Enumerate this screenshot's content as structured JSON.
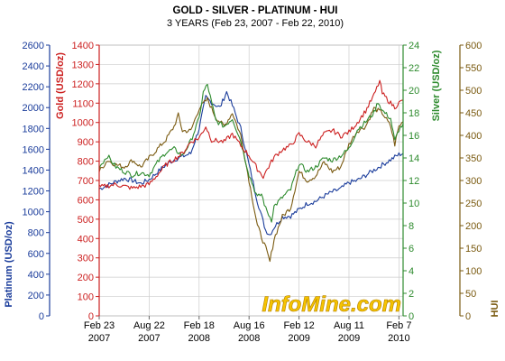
{
  "chart_data": {
    "type": "line",
    "title": "GOLD - SILVER - PLATINUM - HUI",
    "subtitle": "3 YEARS (Feb 23, 2007 - Feb 22, 2010)",
    "watermark": "InfoMine.com",
    "grid": true,
    "x_ticks": [
      {
        "month": "Feb 23",
        "year": "2007",
        "t": 0
      },
      {
        "month": "Aug 22",
        "year": "2007",
        "t": 6
      },
      {
        "month": "Feb 18",
        "year": "2008",
        "t": 12
      },
      {
        "month": "Aug 16",
        "year": "2008",
        "t": 18
      },
      {
        "month": "Feb 12",
        "year": "2009",
        "t": 24
      },
      {
        "month": "Aug 11",
        "year": "2009",
        "t": 30
      },
      {
        "month": "Feb 7",
        "year": "2010",
        "t": 36
      }
    ],
    "x_range_months": [
      0,
      36.5
    ],
    "axes": {
      "platinum": {
        "label": "Platinum (USD/oz)",
        "color": "#1a3c9b",
        "min": 0,
        "max": 2600,
        "ticks": [
          "0",
          "200",
          "400",
          "600",
          "800",
          "1000",
          "1200",
          "1400",
          "1600",
          "1800",
          "2000",
          "2200",
          "2400",
          "2600"
        ]
      },
      "gold": {
        "label": "Gold (USD/oz)",
        "color": "#cc2020",
        "min": 0,
        "max": 1400,
        "ticks": [
          "0",
          "100",
          "200",
          "300",
          "400",
          "500",
          "600",
          "700",
          "800",
          "900",
          "1000",
          "1100",
          "1200",
          "1300",
          "1400"
        ]
      },
      "silver": {
        "label": "Silver (USD/oz)",
        "color": "#2e8b2e",
        "min": 0,
        "max": 24,
        "ticks": [
          "0",
          "2",
          "4",
          "6",
          "8",
          "10",
          "12",
          "14",
          "16",
          "18",
          "20",
          "22",
          "24"
        ]
      },
      "hui": {
        "label": "HUI",
        "color": "#7a5a10",
        "min": 0,
        "max": 600,
        "ticks": [
          "0",
          "50",
          "100",
          "150",
          "200",
          "250",
          "300",
          "350",
          "400",
          "450",
          "500",
          "550",
          "600"
        ]
      }
    },
    "series": [
      {
        "name": "Gold",
        "axis": "gold",
        "color": "#cc2020",
        "points": [
          [
            0,
            665
          ],
          [
            2,
            680
          ],
          [
            4,
            660
          ],
          [
            6,
            680
          ],
          [
            7,
            730
          ],
          [
            8,
            780
          ],
          [
            9,
            810
          ],
          [
            10,
            840
          ],
          [
            11,
            900
          ],
          [
            12,
            920
          ],
          [
            12.8,
            980
          ],
          [
            13.5,
            910
          ],
          [
            15,
            900
          ],
          [
            16,
            940
          ],
          [
            17,
            880
          ],
          [
            18,
            830
          ],
          [
            19,
            760
          ],
          [
            19.7,
            720
          ],
          [
            20.2,
            760
          ],
          [
            21,
            820
          ],
          [
            22,
            860
          ],
          [
            23,
            880
          ],
          [
            24,
            940
          ],
          [
            25,
            900
          ],
          [
            26,
            880
          ],
          [
            27,
            940
          ],
          [
            28,
            960
          ],
          [
            29,
            930
          ],
          [
            30,
            950
          ],
          [
            31,
            1000
          ],
          [
            32,
            1060
          ],
          [
            33,
            1140
          ],
          [
            33.7,
            1215
          ],
          [
            34,
            1150
          ],
          [
            35,
            1100
          ],
          [
            35.5,
            1080
          ],
          [
            36,
            1100
          ],
          [
            36.5,
            1115
          ]
        ]
      },
      {
        "name": "Silver",
        "axis": "silver",
        "color": "#2e8b2e",
        "points": [
          [
            0,
            13.2
          ],
          [
            1,
            14.2
          ],
          [
            2,
            13.2
          ],
          [
            3,
            12.8
          ],
          [
            4,
            12.5
          ],
          [
            5,
            12.7
          ],
          [
            6,
            12.5
          ],
          [
            7,
            13.6
          ],
          [
            8,
            14.5
          ],
          [
            9,
            14.8
          ],
          [
            10,
            14.2
          ],
          [
            11,
            15.5
          ],
          [
            12,
            17.5
          ],
          [
            12.5,
            19.8
          ],
          [
            13,
            20.5
          ],
          [
            14,
            17.3
          ],
          [
            15,
            16.8
          ],
          [
            16,
            17.5
          ],
          [
            17,
            15.5
          ],
          [
            18,
            12.5
          ],
          [
            19,
            10.5
          ],
          [
            19.5,
            10.8
          ],
          [
            20,
            9.5
          ],
          [
            20.7,
            8.5
          ],
          [
            21,
            9.7
          ],
          [
            22,
            10.5
          ],
          [
            23,
            11.2
          ],
          [
            24,
            13.5
          ],
          [
            25,
            12.8
          ],
          [
            26,
            13.2
          ],
          [
            27,
            14
          ],
          [
            28,
            13.8
          ],
          [
            29,
            14.2
          ],
          [
            30,
            14.8
          ],
          [
            31,
            16.5
          ],
          [
            32,
            17.2
          ],
          [
            33,
            18
          ],
          [
            33.5,
            19
          ],
          [
            34,
            18.2
          ],
          [
            35,
            17.5
          ],
          [
            35.5,
            15.5
          ],
          [
            36,
            16.5
          ],
          [
            36.5,
            17
          ]
        ]
      },
      {
        "name": "Platinum",
        "axis": "platinum",
        "color": "#1a3c9b",
        "points": [
          [
            0,
            1220
          ],
          [
            2,
            1290
          ],
          [
            3,
            1320
          ],
          [
            4,
            1300
          ],
          [
            5,
            1270
          ],
          [
            6,
            1310
          ],
          [
            7,
            1380
          ],
          [
            8,
            1450
          ],
          [
            9,
            1500
          ],
          [
            10,
            1530
          ],
          [
            11,
            1560
          ],
          [
            12,
            1800
          ],
          [
            12.8,
            2100
          ],
          [
            13.5,
            2050
          ],
          [
            14.5,
            2000
          ],
          [
            15.3,
            2150
          ],
          [
            16,
            2020
          ],
          [
            17,
            1800
          ],
          [
            18,
            1450
          ],
          [
            19,
            1100
          ],
          [
            20,
            820
          ],
          [
            20.5,
            780
          ],
          [
            21,
            850
          ],
          [
            22,
            950
          ],
          [
            23,
            960
          ],
          [
            24,
            1020
          ],
          [
            25,
            1080
          ],
          [
            26,
            1100
          ],
          [
            27,
            1150
          ],
          [
            28,
            1190
          ],
          [
            29,
            1220
          ],
          [
            30,
            1280
          ],
          [
            31,
            1300
          ],
          [
            32,
            1350
          ],
          [
            33,
            1400
          ],
          [
            34,
            1450
          ],
          [
            35,
            1500
          ],
          [
            36,
            1550
          ],
          [
            36.5,
            1560
          ]
        ]
      },
      {
        "name": "HUI",
        "axis": "hui",
        "color": "#7a5a10",
        "points": [
          [
            0,
            320
          ],
          [
            1,
            345
          ],
          [
            2,
            335
          ],
          [
            3,
            330
          ],
          [
            4,
            345
          ],
          [
            5,
            330
          ],
          [
            6,
            350
          ],
          [
            7,
            370
          ],
          [
            8,
            390
          ],
          [
            9,
            420
          ],
          [
            9.5,
            445
          ],
          [
            10,
            410
          ],
          [
            11,
            410
          ],
          [
            12,
            460
          ],
          [
            13,
            480
          ],
          [
            14,
            440
          ],
          [
            15,
            420
          ],
          [
            16,
            450
          ],
          [
            17,
            400
          ],
          [
            18,
            300
          ],
          [
            19,
            200
          ],
          [
            20,
            150
          ],
          [
            20.5,
            120
          ],
          [
            21,
            170
          ],
          [
            22,
            220
          ],
          [
            23,
            240
          ],
          [
            24,
            320
          ],
          [
            25,
            300
          ],
          [
            26,
            310
          ],
          [
            27,
            340
          ],
          [
            28,
            320
          ],
          [
            29,
            330
          ],
          [
            30,
            380
          ],
          [
            31,
            410
          ],
          [
            32,
            420
          ],
          [
            33,
            460
          ],
          [
            34,
            450
          ],
          [
            35,
            420
          ],
          [
            35.5,
            380
          ],
          [
            36,
            420
          ],
          [
            36.5,
            430
          ]
        ]
      }
    ]
  }
}
